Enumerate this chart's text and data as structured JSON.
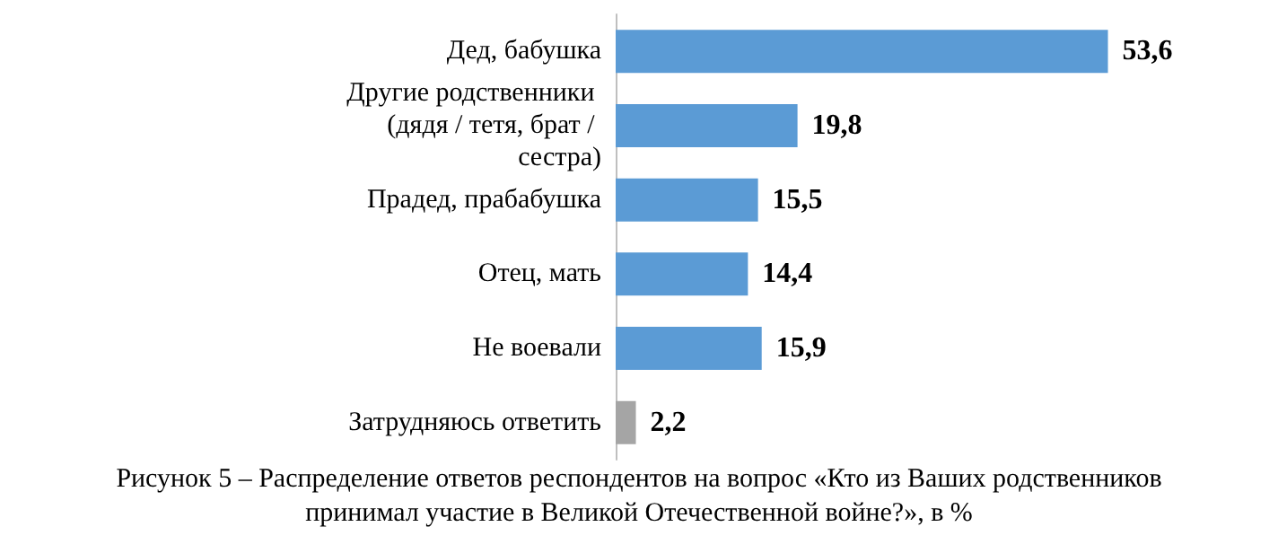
{
  "chart_data": {
    "type": "bar",
    "orientation": "horizontal",
    "categories": [
      "Дед, бабушка",
      "Другие родственники (дядя / тетя, брат / сестра)",
      "Прадед, прабабушка",
      "Отец, мать",
      "Не воевали",
      "Затрудняюсь ответить"
    ],
    "values": [
      53.6,
      19.8,
      15.5,
      14.4,
      15.9,
      2.2
    ],
    "colors": [
      "#5b9bd5",
      "#5b9bd5",
      "#5b9bd5",
      "#5b9bd5",
      "#5b9bd5",
      "#a5a5a5"
    ],
    "value_labels": [
      "53,6",
      "19,8",
      "15,5",
      "14,4",
      "15,9",
      "2,2"
    ],
    "annotations": [
      "Рисунок 5 – Распределение ответов респондентов на вопрос «Кто из Ваших родственников принимал участие в Великой Отечественной войне?», в %"
    ]
  }
}
